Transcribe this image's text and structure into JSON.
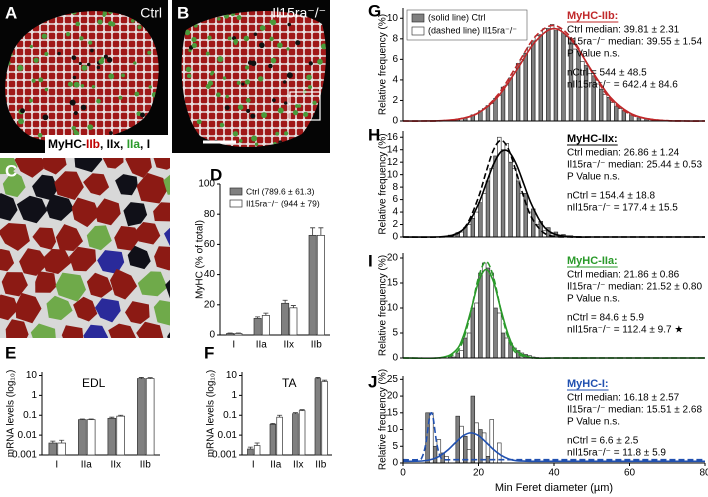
{
  "images": [
    {
      "panel": "A",
      "label": "Ctrl",
      "stain": [
        {
          "text": "MyHC-",
          "color": "#000000"
        },
        {
          "text": "IIb",
          "color": "#c00000"
        },
        {
          "text": ", IIx, ",
          "color": "#000000"
        },
        {
          "text": "IIa",
          "color": "#2a9a2a"
        },
        {
          "text": ", I",
          "color": "#000000"
        }
      ]
    },
    {
      "panel": "B",
      "label": "Il15ra⁻/⁻"
    },
    {
      "panel": "C"
    }
  ],
  "chart_data": [
    {
      "type": "bar",
      "panel": "D",
      "ylabel": "MyHC (% of total)",
      "categories": [
        "I",
        "IIa",
        "IIx",
        "IIb"
      ],
      "series": [
        {
          "name": "Ctrl (789.6 ± 61.3)",
          "color": "#808080",
          "values": [
            1,
            11,
            21,
            66
          ],
          "errors": [
            0.3,
            1,
            2,
            5
          ]
        },
        {
          "name": "Il15ra⁻/⁻ (944 ± 79)",
          "color": "#ffffff",
          "values": [
            1,
            13,
            18,
            66
          ],
          "errors": [
            0.3,
            1.5,
            1.5,
            5
          ]
        }
      ],
      "ylim": [
        0,
        100
      ],
      "yticks": [
        0,
        20,
        40,
        60,
        80,
        100
      ],
      "legend": "upper left"
    },
    {
      "type": "bar",
      "panel": "E",
      "title": "EDL",
      "ylabel": "mRNA levels (log₁₀)",
      "log_scale": true,
      "categories": [
        "I",
        "IIa",
        "IIx",
        "IIb"
      ],
      "series": [
        {
          "color": "#808080",
          "values": [
            0.004,
            0.06,
            0.07,
            7
          ],
          "errors": [
            0.001,
            0.005,
            0.01,
            1
          ]
        },
        {
          "color": "#ffffff",
          "values": [
            0.004,
            0.06,
            0.09,
            7
          ],
          "errors": [
            0.0015,
            0.005,
            0.01,
            0.8
          ]
        }
      ],
      "ylim": [
        0.001,
        15
      ],
      "yticks": [
        0.001,
        0.01,
        0.1,
        1,
        10
      ]
    },
    {
      "type": "bar",
      "panel": "F",
      "title": "TA",
      "ylabel": "mRNA levels (log₁₀)",
      "log_scale": true,
      "categories": [
        "I",
        "IIa",
        "IIx",
        "IIb"
      ],
      "series": [
        {
          "color": "#808080",
          "values": [
            0.002,
            0.035,
            0.12,
            7
          ],
          "errors": [
            0.0005,
            0.004,
            0.015,
            1
          ]
        },
        {
          "color": "#ffffff",
          "values": [
            0.003,
            0.08,
            0.17,
            5
          ],
          "errors": [
            0.001,
            0.02,
            0.02,
            0.8
          ]
        }
      ],
      "ylim": [
        0.001,
        15
      ],
      "yticks": [
        0.001,
        0.01,
        0.1,
        1,
        10
      ]
    },
    {
      "type": "histogram",
      "panel": "G",
      "title": "MyHC-IIb:",
      "color": "#c0282a",
      "ylabel": "Relative frequency (%)",
      "legend": "upper left",
      "annotations": [
        "Ctrl median: 39.81 ± 2.31",
        "Il15ra⁻/⁻ median: 39.55 ± 1.54",
        "P Value n.s.",
        "nCtrl = 544 ± 48.5",
        "nIl15ra⁻/⁻ = 642.4 ± 84.6"
      ],
      "bins": [
        12,
        14,
        16,
        18,
        20,
        22,
        24,
        26,
        28,
        30,
        32,
        34,
        36,
        38,
        40,
        42,
        44,
        46,
        48,
        50,
        52,
        54,
        56,
        58,
        60,
        62,
        64,
        66,
        68
      ],
      "series": [
        {
          "name": "(solid line) Ctrl",
          "color": "#808080",
          "values": [
            0.1,
            0.2,
            0.3,
            0.6,
            1.0,
            1.5,
            2.2,
            3.3,
            4.2,
            5.6,
            6.6,
            7.8,
            8.4,
            9.0,
            8.8,
            8.5,
            7.6,
            6.8,
            5.4,
            4.4,
            3.1,
            2.3,
            1.4,
            1.0,
            0.6,
            0.3,
            0.2,
            0.1
          ]
        },
        {
          "name": "(dashed line) Il15ra⁻/⁻",
          "color": "#ffffff",
          "values": [
            0.1,
            0.2,
            0.4,
            0.7,
            1.2,
            1.7,
            2.5,
            3.5,
            4.8,
            6.0,
            7.2,
            8.3,
            9.0,
            9.4,
            9.0,
            8.2,
            7.0,
            5.8,
            4.6,
            3.6,
            2.6,
            1.8,
            1.2,
            0.8,
            0.5,
            0.3,
            0.2,
            0.1
          ]
        }
      ],
      "fits": [
        {
          "style": "solid",
          "x": [
            0,
            5,
            10,
            15,
            20,
            25,
            30,
            35,
            40,
            45,
            50,
            55,
            60,
            65,
            70,
            75,
            80
          ],
          "values": [
            0,
            0,
            0.03,
            0.2,
            0.8,
            2.3,
            4.9,
            7.7,
            9,
            7.7,
            4.9,
            2.3,
            0.8,
            0.2,
            0.03,
            0,
            0
          ]
        },
        {
          "style": "dashed",
          "x": [
            0,
            5,
            10,
            15,
            20,
            25,
            30,
            35,
            40,
            45,
            50,
            55,
            60,
            65,
            70,
            75,
            80
          ],
          "values": [
            0,
            0,
            0.02,
            0.2,
            0.8,
            2.5,
            5.3,
            8.2,
            9.3,
            7.9,
            4.8,
            2.1,
            0.7,
            0.2,
            0.03,
            0,
            0
          ]
        }
      ],
      "xlim": [
        0,
        80
      ],
      "ylim": [
        0,
        11
      ],
      "yticks": [
        0,
        2,
        4,
        6,
        8,
        10
      ]
    },
    {
      "type": "histogram",
      "panel": "H",
      "title": "MyHC-IIx:",
      "color": "#000000",
      "ylabel": "Relative frequency (%)",
      "annotations": [
        "Ctrl median: 26.86 ± 1.24",
        "Il15ra⁻/⁻ median: 25.44 ± 0.53",
        "P Value n.s.",
        "nCtrl = 154.4 ± 18.8",
        "nIl15ra⁻/⁻ = 177.4 ± 15.5"
      ],
      "bins": [
        12,
        14,
        16,
        18,
        20,
        22,
        24,
        26,
        28,
        30,
        32,
        34,
        36,
        38,
        40,
        42,
        44,
        46,
        48
      ],
      "series": [
        {
          "color": "#808080",
          "values": [
            0.3,
            0.7,
            1.5,
            3,
            5.5,
            9,
            13,
            14,
            12,
            9,
            7,
            4.5,
            2.5,
            1.5,
            0.8,
            0.4,
            0.2,
            0.1
          ]
        },
        {
          "color": "#ffffff",
          "values": [
            0.2,
            0.8,
            2,
            4,
            7,
            11,
            16,
            15,
            11,
            7,
            4,
            2,
            1,
            0.5,
            0.3,
            0.2,
            0.1,
            0
          ]
        }
      ],
      "fits": [
        {
          "style": "solid",
          "x": [
            0,
            10,
            14,
            17,
            20,
            22,
            24,
            26,
            28,
            30,
            32,
            34,
            37,
            40,
            44,
            50,
            60,
            80
          ],
          "values": [
            0,
            0.04,
            0.5,
            1.9,
            5.3,
            8.5,
            11.7,
            13.7,
            13.7,
            11.7,
            8.5,
            5.3,
            1.9,
            0.5,
            0.04,
            0,
            0,
            0
          ]
        },
        {
          "style": "dashed",
          "x": [
            0,
            10,
            14,
            17,
            20,
            22,
            24,
            26,
            28,
            30,
            32,
            34,
            37,
            40,
            44,
            50,
            60,
            80
          ],
          "values": [
            0,
            0,
            0.4,
            2.1,
            6.4,
            10.4,
            14,
            15.5,
            14,
            10.4,
            6.4,
            3.2,
            0.8,
            0.1,
            0,
            0,
            0,
            0
          ]
        }
      ],
      "xlim": [
        0,
        80
      ],
      "ylim": [
        0,
        17
      ],
      "yticks": [
        0,
        2,
        4,
        6,
        8,
        10,
        12,
        14,
        16
      ]
    },
    {
      "type": "histogram",
      "panel": "I",
      "title": "MyHC-IIa:",
      "color": "#2a9a2a",
      "ylabel": "Relative frequency (%)",
      "annotations": [
        "Ctrl median: 21.86 ± 0.86",
        "Il15ra⁻/⁻ median: 21.52 ± 0.80",
        "P Value n.s.",
        "nCtrl = 84.6 ± 5.9",
        "nIl15ra⁻/⁻ = 112.4 ± 9.7 ★"
      ],
      "bins": [
        12,
        14,
        16,
        18,
        20,
        22,
        24,
        26,
        28,
        30,
        32,
        34,
        36
      ],
      "series": [
        {
          "color": "#808080",
          "values": [
            0.3,
            1,
            4,
            10,
            17,
            18,
            10,
            5,
            3,
            1.5,
            0.7,
            0.2
          ]
        },
        {
          "color": "#ffffff",
          "values": [
            0.2,
            1.5,
            5,
            11,
            19,
            17,
            9,
            4,
            2,
            1,
            0.5,
            0.1
          ]
        }
      ],
      "fits": [
        {
          "style": "solid",
          "x": [
            0,
            10,
            14,
            16,
            18,
            20,
            22,
            24,
            26,
            28,
            30,
            34,
            40,
            50,
            60,
            80
          ],
          "values": [
            0,
            0.07,
            1.5,
            4.4,
            9.5,
            15.2,
            17.7,
            15.2,
            9.5,
            4.4,
            1.5,
            0.07,
            0,
            0,
            0,
            0
          ]
        },
        {
          "style": "dashed",
          "x": [
            0,
            10,
            14,
            16,
            18,
            20,
            22,
            24,
            26,
            28,
            30,
            34,
            40,
            50,
            60,
            80
          ],
          "values": [
            0,
            0.03,
            1.0,
            3.7,
            9.3,
            16.1,
            19.3,
            16.1,
            9.3,
            3.7,
            1.0,
            0.03,
            0,
            0,
            0,
            0
          ]
        }
      ],
      "xlim": [
        0,
        80
      ],
      "ylim": [
        0,
        21
      ],
      "yticks": [
        0,
        5,
        10,
        15,
        20
      ]
    },
    {
      "type": "histogram",
      "panel": "J",
      "title": "MyHC-I:",
      "color": "#2050b0",
      "ylabel": "Relative frequency (%)",
      "xlabel": "Min Feret diameter (µm)",
      "annotations": [
        "Ctrl median: 16.18 ± 2.57",
        "Il15ra⁻/⁻ median: 15.51 ± 2.68",
        "P Value n.s.",
        "nCtrl = 6.6 ± 2.5",
        "nIl15ra⁻/⁻ = 11.8 ± 5.9"
      ],
      "bins": [
        4,
        6,
        8,
        10,
        12,
        14,
        16,
        18,
        20,
        22,
        24,
        26
      ],
      "series": [
        {
          "color": "#808080",
          "values": [
            0,
            15,
            5,
            3,
            0,
            14,
            8,
            20,
            10,
            2,
            0
          ]
        },
        {
          "color": "#ffffff",
          "values": [
            0,
            15,
            7,
            2,
            0,
            11,
            4,
            12,
            9,
            13,
            6
          ]
        }
      ],
      "fits": [
        {
          "style": "solid",
          "x": [
            0,
            5,
            8,
            10,
            12,
            14,
            16,
            18,
            20,
            22,
            24,
            26,
            28,
            30,
            35,
            40,
            50,
            60,
            80
          ],
          "values": [
            0.5,
            0.6,
            1.2,
            2.3,
            4.0,
            6.2,
            8.2,
            9.0,
            8.2,
            6.2,
            4.0,
            2.3,
            1.2,
            0.7,
            0.5,
            0.5,
            0.5,
            0.5,
            0.5
          ]
        },
        {
          "style": "dashed",
          "x": [
            0,
            4,
            5,
            6,
            7,
            7.5,
            8,
            9,
            10,
            11,
            14,
            20,
            40,
            60,
            80
          ],
          "values": [
            1,
            1,
            1.6,
            5.5,
            13.4,
            15,
            13.4,
            5.5,
            1.6,
            1,
            1,
            1,
            1,
            1,
            1
          ]
        }
      ],
      "xlim": [
        0,
        80
      ],
      "xticks": [
        0,
        20,
        40,
        60,
        80
      ],
      "ylim": [
        0,
        26
      ],
      "yticks": [
        0,
        5,
        10,
        15,
        20,
        25
      ]
    }
  ]
}
